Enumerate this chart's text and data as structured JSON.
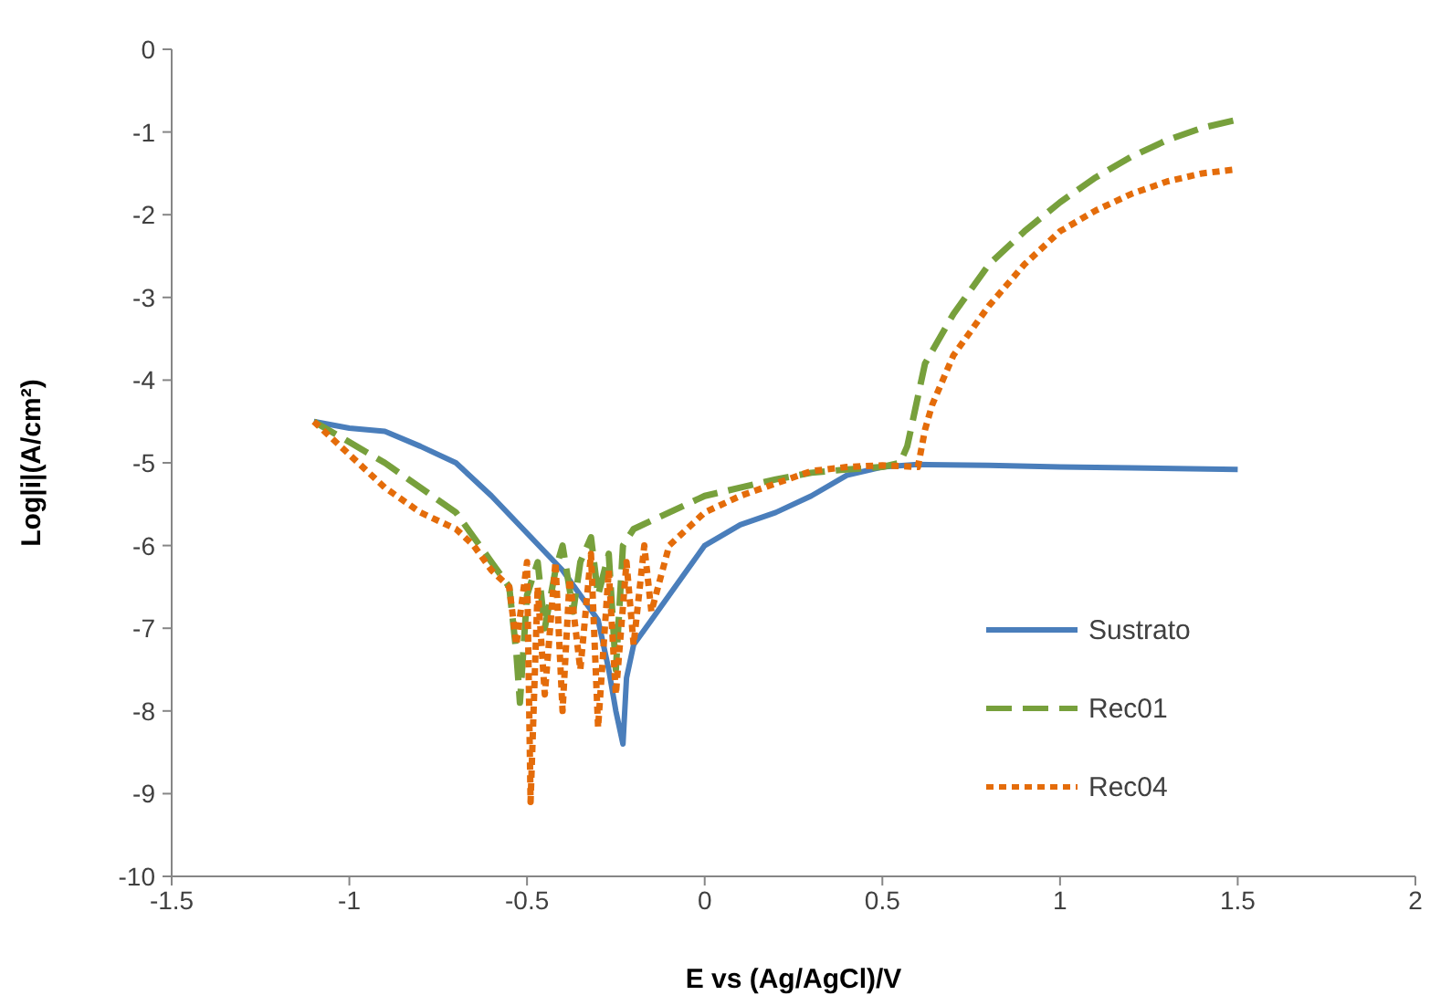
{
  "chart_data": {
    "type": "line",
    "xlabel": "E vs (Ag/AgCl)/V",
    "ylabel": "Log|i|(A/cm²)",
    "xlim": [
      -1.5,
      2
    ],
    "xticks": [
      -1.5,
      -1,
      -0.5,
      0,
      0.5,
      1,
      1.5,
      2
    ],
    "ylim": [
      -10,
      0
    ],
    "yticks": [
      -10,
      -9,
      -8,
      -7,
      -6,
      -5,
      -4,
      -3,
      -2,
      -1,
      0
    ],
    "grid": false,
    "legend": "right",
    "series": [
      {
        "name": "Sustrato",
        "color": "#4a7ebb",
        "line_style": "solid",
        "x": [
          -1.1,
          -1,
          -0.9,
          -0.8,
          -0.7,
          -0.6,
          -0.5,
          -0.4,
          -0.35,
          -0.3,
          -0.27,
          -0.25,
          -0.23,
          -0.22,
          -0.2,
          -0.15,
          -0.1,
          -0.05,
          0,
          0.1,
          0.2,
          0.3,
          0.4,
          0.5,
          0.6,
          0.8,
          1.0,
          1.2,
          1.5
        ],
        "values": [
          -4.5,
          -4.58,
          -4.62,
          -4.8,
          -5.0,
          -5.4,
          -5.85,
          -6.3,
          -6.6,
          -6.9,
          -7.5,
          -8.0,
          -8.4,
          -7.6,
          -7.2,
          -6.9,
          -6.6,
          -6.3,
          -6.0,
          -5.75,
          -5.6,
          -5.4,
          -5.15,
          -5.05,
          -5.02,
          -5.03,
          -5.05,
          -5.06,
          -5.08
        ]
      },
      {
        "name": "Rec01",
        "color": "#77a03c",
        "line_style": "dashed",
        "x": [
          -1.1,
          -1,
          -0.9,
          -0.8,
          -0.7,
          -0.65,
          -0.6,
          -0.55,
          -0.53,
          -0.52,
          -0.5,
          -0.47,
          -0.45,
          -0.42,
          -0.4,
          -0.37,
          -0.35,
          -0.32,
          -0.3,
          -0.27,
          -0.25,
          -0.23,
          -0.2,
          -0.15,
          -0.1,
          -0.05,
          0,
          0.1,
          0.2,
          0.3,
          0.4,
          0.5,
          0.55,
          0.57,
          0.6,
          0.62,
          0.7,
          0.8,
          0.9,
          1.0,
          1.1,
          1.2,
          1.3,
          1.4,
          1.5
        ],
        "values": [
          -4.5,
          -4.75,
          -5.0,
          -5.3,
          -5.6,
          -5.9,
          -6.2,
          -6.5,
          -7.3,
          -7.9,
          -6.6,
          -6.2,
          -7.0,
          -6.3,
          -6.0,
          -6.8,
          -6.2,
          -5.9,
          -6.6,
          -6.1,
          -7.5,
          -6.0,
          -5.8,
          -5.7,
          -5.6,
          -5.5,
          -5.4,
          -5.3,
          -5.2,
          -5.12,
          -5.08,
          -5.05,
          -5.0,
          -4.8,
          -4.2,
          -3.8,
          -3.2,
          -2.6,
          -2.2,
          -1.85,
          -1.55,
          -1.3,
          -1.1,
          -0.95,
          -0.85
        ]
      },
      {
        "name": "Rec04",
        "color": "#e46c0a",
        "line_style": "dotted",
        "x": [
          -1.1,
          -1,
          -0.9,
          -0.8,
          -0.7,
          -0.65,
          -0.6,
          -0.55,
          -0.53,
          -0.5,
          -0.49,
          -0.47,
          -0.45,
          -0.42,
          -0.4,
          -0.38,
          -0.35,
          -0.32,
          -0.3,
          -0.27,
          -0.25,
          -0.22,
          -0.2,
          -0.17,
          -0.15,
          -0.1,
          -0.05,
          0,
          0.1,
          0.2,
          0.3,
          0.4,
          0.5,
          0.6,
          0.62,
          0.64,
          0.7,
          0.8,
          0.9,
          1.0,
          1.1,
          1.2,
          1.3,
          1.4,
          1.5
        ],
        "values": [
          -4.5,
          -4.9,
          -5.3,
          -5.6,
          -5.8,
          -6.0,
          -6.3,
          -6.5,
          -7.2,
          -6.2,
          -9.1,
          -6.5,
          -7.8,
          -6.2,
          -8.0,
          -6.4,
          -7.5,
          -6.1,
          -8.2,
          -6.3,
          -7.8,
          -6.2,
          -7.2,
          -6.0,
          -6.8,
          -6.0,
          -5.8,
          -5.6,
          -5.4,
          -5.25,
          -5.1,
          -5.05,
          -5.03,
          -5.05,
          -4.6,
          -4.3,
          -3.7,
          -3.1,
          -2.6,
          -2.2,
          -1.95,
          -1.75,
          -1.6,
          -1.5,
          -1.45
        ]
      }
    ]
  }
}
